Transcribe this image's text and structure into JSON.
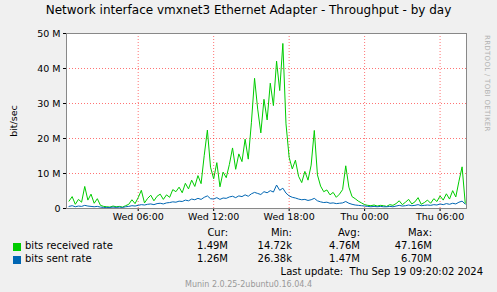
{
  "chart_data": {
    "type": "line",
    "title": "Network interface vmxnet3 Ethernet Adapter - Throughput - by day",
    "y_label": "bit/sec",
    "x": [
      0.5,
      0.75,
      1.0,
      1.25,
      1.5,
      1.75,
      2.0,
      2.25,
      2.5,
      2.75,
      3.0,
      3.25,
      3.5,
      3.75,
      4.0,
      4.25,
      4.5,
      4.75,
      5.0,
      5.25,
      5.5,
      5.75,
      6.0,
      6.25,
      6.5,
      6.75,
      7.0,
      7.25,
      7.5,
      7.75,
      8.0,
      8.25,
      8.5,
      8.75,
      9.0,
      9.25,
      9.5,
      9.75,
      10.0,
      10.25,
      10.5,
      10.75,
      11.0,
      11.25,
      11.5,
      11.75,
      12.0,
      12.25,
      12.5,
      12.75,
      13.0,
      13.25,
      13.5,
      13.75,
      14.0,
      14.25,
      14.5,
      14.75,
      15.0,
      15.25,
      15.5,
      15.75,
      16.0,
      16.25,
      16.5,
      16.75,
      17.0,
      17.25,
      17.5,
      17.75,
      18.0,
      18.25,
      18.5,
      18.75,
      19.0,
      19.25,
      19.5,
      19.75,
      20.0,
      20.25,
      20.5,
      20.75,
      21.0,
      21.25,
      21.5,
      21.75,
      22.0,
      22.25,
      22.5,
      22.75,
      23.0,
      23.25,
      23.5,
      23.75,
      24.0,
      24.25,
      24.5,
      24.75,
      25.0,
      25.25,
      25.5,
      25.75,
      26.0,
      26.25,
      26.5,
      26.75,
      27.0,
      27.25,
      27.5,
      27.75,
      28.0,
      28.25,
      28.5,
      28.75,
      29.0,
      29.25,
      29.5,
      29.75,
      30.0,
      30.25,
      30.5,
      30.75,
      31.0,
      31.25,
      31.5,
      31.75,
      32.0
    ],
    "series": [
      {
        "name": "bits received rate",
        "color": "#00cc00",
        "values": [
          2100000.0,
          3400000.0,
          1200000.0,
          2600000.0,
          1800000.0,
          6300000.0,
          2400000.0,
          4100000.0,
          1500000.0,
          2800000.0,
          900000.0,
          600000.0,
          500000.0,
          400000.0,
          700000.0,
          500000.0,
          600000.0,
          400000.0,
          800000.0,
          1200000.0,
          2500000.0,
          1400000.0,
          3100000.0,
          5200000.0,
          1600000.0,
          2900000.0,
          3800000.0,
          2200000.0,
          3500000.0,
          4100000.0,
          2600000.0,
          3900000.0,
          3200000.0,
          5400000.0,
          4800000.0,
          6100000.0,
          4500000.0,
          7200000.0,
          5600000.0,
          8100000.0,
          6300000.0,
          9400000.0,
          7100000.0,
          15200000.0,
          22400000.0,
          11800000.0,
          8500000.0,
          13100000.0,
          6200000.0,
          10400000.0,
          8800000.0,
          12600000.0,
          17300000.0,
          11200000.0,
          15600000.0,
          13400000.0,
          19800000.0,
          14100000.0,
          24500000.0,
          37200000.0,
          28400000.0,
          21600000.0,
          31200000.0,
          25300000.0,
          35800000.0,
          29400000.0,
          42100000.0,
          33700000.0,
          47160000.0,
          24200000.0,
          14600000.0,
          11300000.0,
          13800000.0,
          9200000.0,
          7400000.0,
          10600000.0,
          8100000.0,
          12400000.0,
          22300000.0,
          9600000.0,
          6400000.0,
          4800000.0,
          5300000.0,
          3900000.0,
          4600000.0,
          3200000.0,
          4100000.0,
          5400000.0,
          12200000.0,
          6100000.0,
          3400000.0,
          2800000.0,
          2100000.0,
          1600000.0,
          1100000.0,
          900000.0,
          800000.0,
          1000000.0,
          700000.0,
          900000.0,
          800000.0,
          600000.0,
          1100000.0,
          900000.0,
          1400000.0,
          2200000.0,
          1100000.0,
          1800000.0,
          2600000.0,
          1300000.0,
          1900000.0,
          3100000.0,
          1200000.0,
          1700000.0,
          2400000.0,
          1500000.0,
          2800000.0,
          2000000.0,
          3600000.0,
          2400000.0,
          4200000.0,
          2700000.0,
          5100000.0,
          3300000.0,
          7800000.0,
          11900000.0,
          1490000.0
        ],
        "stats": [
          {
            "value": 1490000.0,
            "label": "1.49M"
          },
          {
            "value": 14720,
            "label": "14.72k"
          },
          {
            "value": 4760000.0,
            "label": "4.76M"
          },
          {
            "value": 47160000.0,
            "label": "47.16M"
          }
        ]
      },
      {
        "name": "bits sent rate",
        "color": "#0066b3",
        "values": [
          600000.0,
          800000.0,
          500000.0,
          700000.0,
          600000.0,
          900000.0,
          700000.0,
          600000.0,
          500000.0,
          600000.0,
          400000.0,
          300000.0,
          300000.0,
          300000.0,
          400000.0,
          300000.0,
          400000.0,
          300000.0,
          500000.0,
          600000.0,
          800000.0,
          700000.0,
          900000.0,
          1100000.0,
          1000000.0,
          1200000.0,
          1300000.0,
          1100000.0,
          1400000.0,
          1500000.0,
          1300000.0,
          1600000.0,
          1700000.0,
          1900000.0,
          1800000.0,
          2100000.0,
          2000000.0,
          2400000.0,
          2200000.0,
          2700000.0,
          2500000.0,
          2900000.0,
          2600000.0,
          3200000.0,
          3600000.0,
          2800000.0,
          2700000.0,
          3100000.0,
          2600000.0,
          3000000.0,
          2900000.0,
          3300000.0,
          3500000.0,
          3100000.0,
          3600000.0,
          3400000.0,
          3900000.0,
          3500000.0,
          4200000.0,
          4600000.0,
          4300000.0,
          4000000.0,
          4800000.0,
          4500000.0,
          5100000.0,
          4700000.0,
          6700000.0,
          5200000.0,
          5800000.0,
          4400000.0,
          3600000.0,
          3200000.0,
          3000000.0,
          2700000.0,
          2500000.0,
          2600000.0,
          2300000.0,
          2500000.0,
          2900000.0,
          2200000.0,
          1900000.0,
          1700000.0,
          1800000.0,
          1500000.0,
          1600000.0,
          1400000.0,
          1500000.0,
          1600000.0,
          2000000.0,
          1500000.0,
          1200000.0,
          1000000.0,
          900000.0,
          800000.0,
          700000.0,
          600000.0,
          500000.0,
          600000.0,
          500000.0,
          600000.0,
          500000.0,
          500000.0,
          600000.0,
          500000.0,
          700000.0,
          900000.0,
          700000.0,
          800000.0,
          1000000.0,
          800000.0,
          900000.0,
          1100000.0,
          800000.0,
          900000.0,
          1000000.0,
          900000.0,
          1100000.0,
          1000000.0,
          1300000.0,
          1100000.0,
          1400000.0,
          1200000.0,
          1500000.0,
          1300000.0,
          1800000.0,
          2100000.0,
          1260000.0
        ],
        "stats": [
          {
            "value": 1260000.0,
            "label": "1.26M"
          },
          {
            "value": 26380,
            "label": "26.38k"
          },
          {
            "value": 1470000.0,
            "label": "1.47M"
          },
          {
            "value": 6700000.0,
            "label": "6.70M"
          }
        ]
      }
    ],
    "xlim": [
      0.3,
      32.1
    ],
    "xticks": [
      {
        "value": 6,
        "label": "Wed 06:00"
      },
      {
        "value": 12,
        "label": "Wed 12:00"
      },
      {
        "value": 18,
        "label": "Wed 18:00"
      },
      {
        "value": 24,
        "label": "Thu 00:00"
      },
      {
        "value": 30,
        "label": "Thu 06:00"
      }
    ],
    "ylim": [
      0,
      50000000
    ],
    "yticks": [
      0,
      {
        "value": 10000000,
        "label": "10 M"
      },
      {
        "value": 20000000,
        "label": "20 M"
      },
      {
        "value": 30000000,
        "label": "30 M"
      },
      {
        "value": 40000000,
        "label": "40 M"
      },
      {
        "value": 50000000,
        "label": "50 M"
      }
    ],
    "grid": true,
    "stats_header": [
      "Cur:",
      "Min:",
      "Avg:",
      "Max:"
    ],
    "last_update_label": "Last update:",
    "last_update": "Thu Sep 19 09:20:02 2024",
    "footer": "Munin 2.0.25-2ubuntu0.16.04.4",
    "side_text": "RRDTOOL / TOBI OETIKER"
  }
}
